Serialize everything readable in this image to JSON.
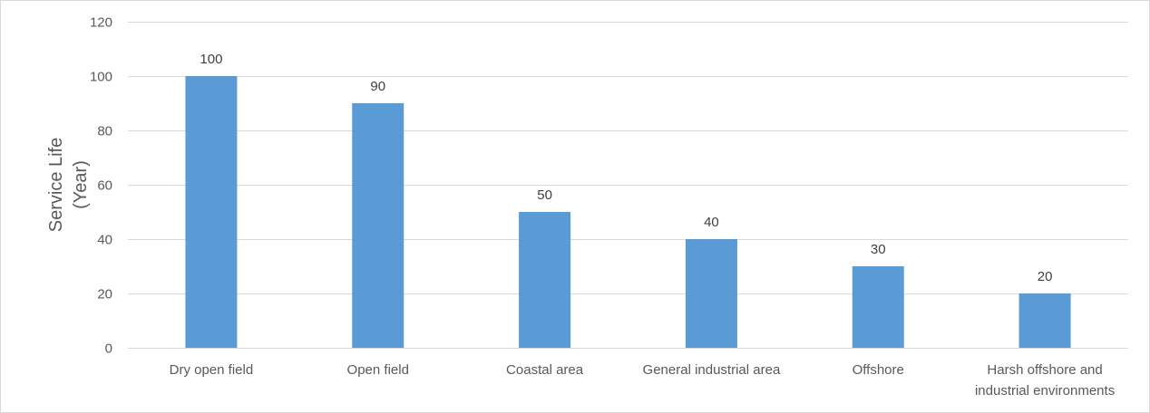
{
  "chart_data": {
    "type": "bar",
    "categories": [
      "Dry open field",
      "Open field",
      "Coastal area",
      "General industrial area",
      "Offshore",
      "Harsh offshore and industrial environments"
    ],
    "category_lines": [
      [
        "Dry open field"
      ],
      [
        "Open field"
      ],
      [
        "Coastal area"
      ],
      [
        "General industrial area"
      ],
      [
        "Offshore"
      ],
      [
        "Harsh offshore and",
        "industrial environments"
      ]
    ],
    "values": [
      100,
      90,
      50,
      40,
      30,
      20
    ],
    "data_labels": [
      "100",
      "90",
      "50",
      "40",
      "30",
      "20"
    ],
    "title": "",
    "xlabel": "",
    "ylabel_lines": [
      "Service Life",
      "(Year)"
    ],
    "ylim": [
      0,
      120
    ],
    "yticks": [
      0,
      20,
      40,
      60,
      80,
      100,
      120
    ],
    "grid": true,
    "bar_color": "#5b9bd5",
    "grid_color": "#d9d9d9"
  }
}
